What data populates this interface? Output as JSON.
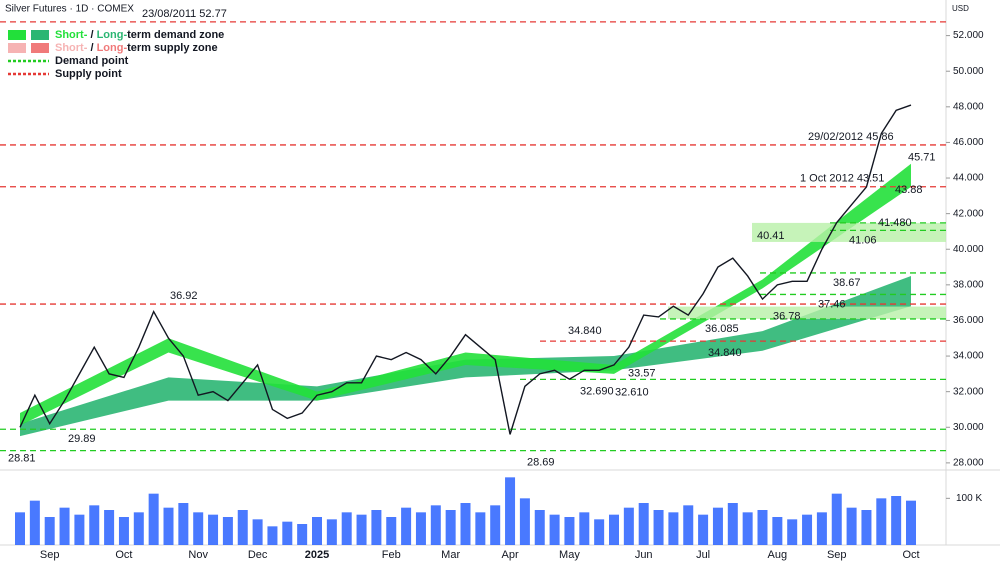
{
  "chart_data": {
    "type": "line",
    "title": "Silver Futures · 1D · COMEX",
    "currency": "USD",
    "legend": [
      {
        "parts": [
          "Short-",
          " / ",
          "Long-",
          "term demand zone"
        ],
        "colors": [
          "#22e03a",
          "#2bb673"
        ]
      },
      {
        "parts": [
          "Short-",
          " / ",
          "Long-",
          "term supply zone"
        ],
        "colors": [
          "#f6b3b3",
          "#f07a7a"
        ]
      },
      {
        "parts": [
          "Demand point"
        ],
        "colors": [
          "#22cc22"
        ]
      },
      {
        "parts": [
          "Supply point"
        ],
        "colors": [
          "#e53935"
        ]
      }
    ],
    "categories": [
      null,
      null,
      "Sep",
      null,
      null,
      null,
      null,
      "Oct",
      null,
      null,
      null,
      null,
      "Nov",
      null,
      null,
      null,
      "Dec",
      null,
      null,
      null,
      "2025",
      null,
      null,
      null,
      null,
      "Feb",
      null,
      null,
      null,
      "Mar",
      null,
      null,
      null,
      "Apr",
      null,
      null,
      null,
      "May",
      null,
      null,
      null,
      null,
      "Jun",
      null,
      null,
      null,
      "Jul",
      null,
      null,
      null,
      null,
      "Aug",
      null,
      null,
      null,
      "Sep",
      null,
      null,
      null,
      null,
      "Oct"
    ],
    "series": [
      {
        "name": "Silver Futures",
        "color": "#131722",
        "values": [
          30.0,
          31.8,
          30.2,
          31.5,
          33.0,
          34.5,
          33.0,
          32.8,
          34.5,
          36.5,
          35.0,
          34.0,
          31.8,
          32.0,
          31.5,
          32.5,
          33.5,
          31.0,
          30.5,
          30.8,
          31.8,
          32.0,
          32.5,
          32.5,
          34.0,
          33.8,
          34.2,
          33.8,
          33.0,
          34.0,
          35.2,
          34.5,
          33.8,
          29.6,
          32.3,
          33.0,
          33.2,
          32.7,
          33.2,
          33.2,
          33.5,
          34.5,
          36.3,
          36.2,
          36.8,
          36.3,
          37.5,
          39.0,
          39.5,
          38.5,
          37.2,
          38.0,
          38.2,
          38.2,
          40.0,
          41.5,
          42.5,
          43.5,
          46.5,
          47.8,
          48.1
        ]
      }
    ],
    "bands": [
      {
        "color": "#2bb673",
        "low": [
          29.5,
          31.5,
          31.5,
          32.8,
          33.2,
          34.3,
          36.8
        ],
        "high": [
          30.2,
          32.8,
          32.3,
          33.8,
          34.0,
          35.4,
          38.5
        ]
      },
      {
        "color": "#22e03a",
        "low": [
          30.1,
          34.2,
          31.5,
          33.5,
          33.0,
          37.8,
          43.5
        ],
        "high": [
          30.8,
          35.0,
          32.0,
          34.2,
          33.5,
          38.3,
          44.8
        ]
      }
    ],
    "zones": [
      {
        "color": "#b8f0a8",
        "low": 40.41,
        "high": 41.48
      },
      {
        "color": "#b8f0a8",
        "low": 36.085,
        "high": 36.78
      }
    ],
    "levels": [
      {
        "value": 52.77,
        "color": "#e53935"
      },
      {
        "value": 45.86,
        "color": "#e53935"
      },
      {
        "value": 43.51,
        "color": "#e53935"
      },
      {
        "value": 36.92,
        "color": "#e53935"
      },
      {
        "value": 34.84,
        "color": "#e53935"
      },
      {
        "value": 41.48,
        "color": "#22cc22"
      },
      {
        "value": 41.06,
        "color": "#22cc22"
      },
      {
        "value": 38.67,
        "color": "#22cc22"
      },
      {
        "value": 37.46,
        "color": "#22cc22"
      },
      {
        "value": 36.085,
        "color": "#22cc22"
      },
      {
        "value": 32.69,
        "color": "#22cc22"
      },
      {
        "value": 29.89,
        "color": "#22cc22"
      },
      {
        "value": 28.69,
        "color": "#22cc22"
      }
    ],
    "annotations": [
      {
        "label": "23/08/2011 52.77",
        "value": 52.77
      },
      {
        "label": "29/02/2012 45.86",
        "value": 45.86
      },
      {
        "label": "1 Oct 2012 43.51",
        "value": 43.51
      },
      {
        "label": "45.71",
        "value": 45.71
      },
      {
        "label": "43.88",
        "value": 43.88
      },
      {
        "label": "40.41",
        "value": 40.41
      },
      {
        "label": "41.06",
        "value": 41.06
      },
      {
        "label": "41.480",
        "value": 41.48
      },
      {
        "label": "38.67",
        "value": 38.67
      },
      {
        "label": "37.46",
        "value": 37.46
      },
      {
        "label": "36.78",
        "value": 36.78
      },
      {
        "label": "36.085",
        "value": 36.085
      },
      {
        "label": "34.840",
        "value": 34.84
      },
      {
        "label": "34.840",
        "value": 34.84
      },
      {
        "label": "33.57",
        "value": 33.57
      },
      {
        "label": "32.690",
        "value": 32.69
      },
      {
        "label": "32.610",
        "value": 32.61
      },
      {
        "label": "36.92",
        "value": 36.92
      },
      {
        "label": "29.89",
        "value": 29.89
      },
      {
        "label": "28.81",
        "value": 28.81
      },
      {
        "label": "28.69",
        "value": 28.69
      }
    ],
    "ylim": [
      27.6,
      54.0
    ],
    "yticks": [
      {
        "value": 28,
        "label": "28.000"
      },
      {
        "value": 30,
        "label": "30.000"
      },
      {
        "value": 32,
        "label": "32.000"
      },
      {
        "value": 34,
        "label": "34.000"
      },
      {
        "value": 36,
        "label": "36.000"
      },
      {
        "value": 38,
        "label": "38.000"
      },
      {
        "value": 40,
        "label": "40.000"
      },
      {
        "value": 42,
        "label": "42.000"
      },
      {
        "value": 44,
        "label": "44.000"
      },
      {
        "value": 46,
        "label": "46.000"
      },
      {
        "value": 48,
        "label": "48.000"
      },
      {
        "value": 50,
        "label": "50.000"
      },
      {
        "value": 52,
        "label": "52.000"
      }
    ],
    "volume": {
      "color": "#2962ff",
      "ylim": [
        0,
        150
      ],
      "yticks": [
        {
          "value": 100,
          "label": "100 K"
        }
      ],
      "values": [
        70,
        95,
        60,
        80,
        65,
        85,
        75,
        60,
        70,
        110,
        80,
        90,
        70,
        65,
        60,
        75,
        55,
        40,
        50,
        45,
        60,
        55,
        70,
        65,
        75,
        60,
        80,
        70,
        85,
        75,
        90,
        70,
        85,
        145,
        100,
        75,
        65,
        60,
        70,
        55,
        65,
        80,
        90,
        75,
        70,
        85,
        65,
        80,
        90,
        70,
        75,
        60,
        55,
        65,
        70,
        110,
        80,
        75,
        100,
        105,
        95
      ]
    }
  }
}
